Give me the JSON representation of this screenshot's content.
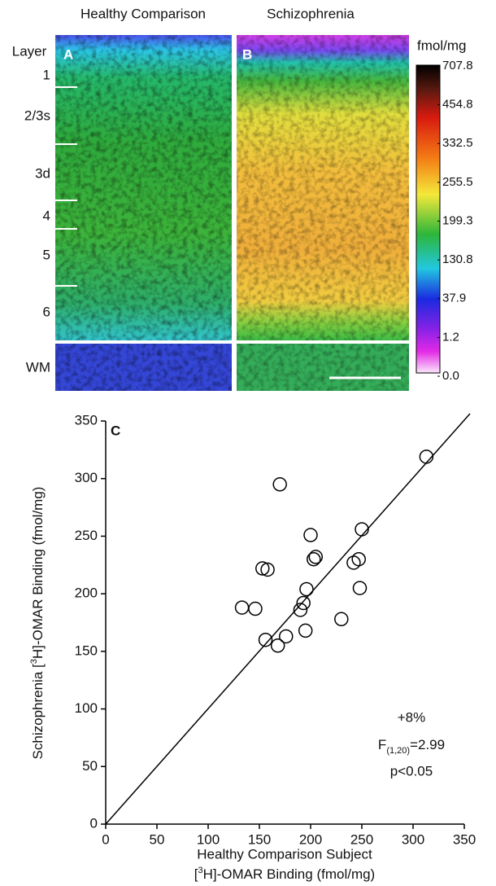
{
  "figure": {
    "column_titles": [
      "Healthy Comparison",
      "Schizophrenia"
    ],
    "panel_labels": [
      "A",
      "B"
    ],
    "layer_title": "Layer",
    "layers": [
      "1",
      "2/3s",
      "3d",
      "4",
      "5",
      "6",
      "WM"
    ],
    "colorbar": {
      "unit": "fmol/mg",
      "ticks": [
        {
          "value": 707.8,
          "label": "707.8"
        },
        {
          "value": 454.8,
          "label": "454.8"
        },
        {
          "value": 332.5,
          "label": "332.5"
        },
        {
          "value": 255.5,
          "label": "255.5"
        },
        {
          "value": 199.3,
          "label": "199.3"
        },
        {
          "value": 130.8,
          "label": "130.8"
        },
        {
          "value": 37.9,
          "label": "37.9"
        },
        {
          "value": 1.2,
          "label": "1.2"
        },
        {
          "value": 0,
          "label": "0.0"
        }
      ]
    }
  },
  "chart_data": {
    "type": "scatter",
    "panel_label": "C",
    "y_label": [
      "Schizophrenia [",
      "3",
      "H]-OMAR Binding (fmol/mg)"
    ],
    "x_label": {
      "line1": "Healthy Comparison Subject",
      "line2": [
        "[",
        "3",
        "H]-OMAR Binding (fmol/mg)"
      ]
    },
    "x": [
      313,
      170,
      200,
      250,
      203,
      205,
      153,
      158,
      242,
      247,
      196,
      248,
      193,
      190,
      133,
      146,
      156,
      176,
      168,
      195,
      230
    ],
    "values": [
      319,
      295,
      251,
      256,
      230,
      232,
      222,
      221,
      227,
      230,
      204,
      205,
      192,
      186,
      188,
      187,
      160,
      163,
      155,
      168,
      178
    ],
    "xlim": [
      0,
      350
    ],
    "ylim": [
      0,
      350
    ],
    "xticks": [
      0,
      50,
      100,
      150,
      200,
      250,
      300,
      350
    ],
    "yticks": [
      0,
      50,
      100,
      150,
      200,
      250,
      300,
      350
    ],
    "annotations": {
      "change": "+8%",
      "f_stat": [
        "F",
        "(1,20)",
        "=2.99"
      ],
      "p_value": "p<0.05"
    }
  }
}
